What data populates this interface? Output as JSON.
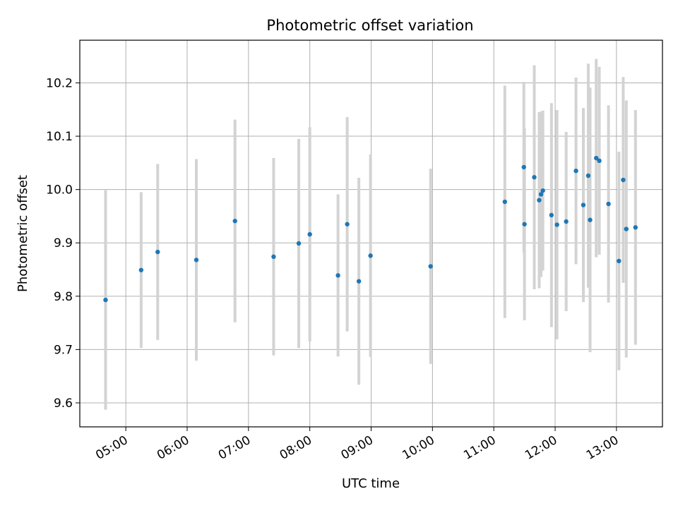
{
  "chart_data": {
    "type": "scatter",
    "title": "Photometric offset variation",
    "xlabel": "UTC time",
    "ylabel": "Photometric offset",
    "x_unit": "hours UTC",
    "xlim": [
      4.25,
      13.75
    ],
    "ylim": [
      9.555,
      10.28
    ],
    "grid": true,
    "x_ticks": [
      {
        "value": 5,
        "label": "05:00"
      },
      {
        "value": 6,
        "label": "06:00"
      },
      {
        "value": 7,
        "label": "07:00"
      },
      {
        "value": 8,
        "label": "08:00"
      },
      {
        "value": 9,
        "label": "09:00"
      },
      {
        "value": 10,
        "label": "10:00"
      },
      {
        "value": 11,
        "label": "11:00"
      },
      {
        "value": 12,
        "label": "12:00"
      },
      {
        "value": 13,
        "label": "13:00"
      }
    ],
    "y_ticks": [
      {
        "value": 9.6,
        "label": "9.6"
      },
      {
        "value": 9.7,
        "label": "9.7"
      },
      {
        "value": 9.8,
        "label": "9.8"
      },
      {
        "value": 9.9,
        "label": "9.9"
      },
      {
        "value": 10.0,
        "label": "10.0"
      },
      {
        "value": 10.1,
        "label": "10.1"
      },
      {
        "value": 10.2,
        "label": "10.2"
      }
    ],
    "colors": {
      "point": "#1f77b4",
      "errorbar": "#d3d3d3",
      "grid": "#b0b0b0"
    },
    "points": [
      {
        "x": 4.67,
        "y": 9.793,
        "err": 0.206
      },
      {
        "x": 5.25,
        "y": 9.849,
        "err": 0.146
      },
      {
        "x": 5.52,
        "y": 9.883,
        "err": 0.165
      },
      {
        "x": 6.15,
        "y": 9.868,
        "err": 0.189
      },
      {
        "x": 6.78,
        "y": 9.941,
        "err": 0.19
      },
      {
        "x": 7.41,
        "y": 9.874,
        "err": 0.185
      },
      {
        "x": 7.82,
        "y": 9.899,
        "err": 0.196
      },
      {
        "x": 8.0,
        "y": 9.916,
        "err": 0.201
      },
      {
        "x": 8.46,
        "y": 9.839,
        "err": 0.152
      },
      {
        "x": 8.61,
        "y": 9.935,
        "err": 0.201
      },
      {
        "x": 8.8,
        "y": 9.828,
        "err": 0.194
      },
      {
        "x": 8.99,
        "y": 9.876,
        "err": 0.19
      },
      {
        "x": 9.97,
        "y": 9.856,
        "err": 0.183
      },
      {
        "x": 11.18,
        "y": 9.977,
        "err": 0.218
      },
      {
        "x": 11.49,
        "y": 10.042,
        "err": 0.16
      },
      {
        "x": 11.5,
        "y": 9.935,
        "err": 0.18
      },
      {
        "x": 11.66,
        "y": 10.023,
        "err": 0.21
      },
      {
        "x": 11.74,
        "y": 9.98,
        "err": 0.165
      },
      {
        "x": 11.77,
        "y": 9.991,
        "err": 0.155
      },
      {
        "x": 11.8,
        "y": 9.998,
        "err": 0.15
      },
      {
        "x": 11.94,
        "y": 9.952,
        "err": 0.21
      },
      {
        "x": 12.03,
        "y": 9.934,
        "err": 0.215
      },
      {
        "x": 12.18,
        "y": 9.94,
        "err": 0.168
      },
      {
        "x": 12.34,
        "y": 10.035,
        "err": 0.175
      },
      {
        "x": 12.46,
        "y": 9.971,
        "err": 0.182
      },
      {
        "x": 12.54,
        "y": 10.026,
        "err": 0.21
      },
      {
        "x": 12.57,
        "y": 9.943,
        "err": 0.248
      },
      {
        "x": 12.67,
        "y": 10.059,
        "err": 0.186
      },
      {
        "x": 12.72,
        "y": 10.054,
        "err": 0.176
      },
      {
        "x": 12.87,
        "y": 9.973,
        "err": 0.185
      },
      {
        "x": 13.04,
        "y": 9.866,
        "err": 0.205
      },
      {
        "x": 13.11,
        "y": 10.018,
        "err": 0.193
      },
      {
        "x": 13.16,
        "y": 9.926,
        "err": 0.241
      },
      {
        "x": 13.31,
        "y": 9.929,
        "err": 0.22
      }
    ]
  }
}
